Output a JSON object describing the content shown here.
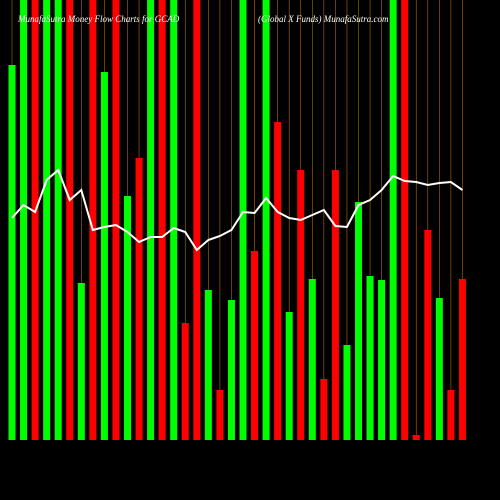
{
  "chart_data": {
    "type": "bar",
    "title": "MunafaSutra Money Flow Charts for GCAD",
    "subtitle": "(Global X Funds) MunafaSutra.com",
    "ylim": [
      0,
      440
    ],
    "bar_colors": [
      "#00ff00",
      "#00ff00",
      "#ff0000",
      "#00ff00",
      "#00ff00",
      "#ff0000",
      "#00ff00",
      "#ff0000",
      "#00ff00",
      "#ff0000",
      "#00ff00",
      "#ff0000",
      "#00ff00",
      "#ff0000",
      "#00ff00",
      "#ff0000",
      "#ff0000",
      "#00ff00",
      "#ff0000",
      "#00ff00",
      "#00ff00",
      "#ff0000",
      "#00ff00",
      "#ff0000",
      "#00ff00",
      "#ff0000",
      "#00ff00",
      "#ff0000",
      "#ff0000",
      "#00ff00",
      "#00ff00",
      "#00ff00",
      "#00ff00",
      "#00ff00",
      "#ff0000",
      "#ff0000",
      "#ff0000",
      "#00ff00",
      "#ff0000",
      "#ff0000"
    ],
    "values": [
      375,
      440,
      440,
      440,
      440,
      440,
      157,
      440,
      368,
      440,
      244,
      282,
      440,
      440,
      440,
      117,
      440,
      150,
      50,
      140,
      440,
      189,
      440,
      318,
      128,
      270,
      161,
      61,
      270,
      95,
      238,
      164,
      160,
      440,
      440,
      5,
      210,
      142,
      50,
      161
    ],
    "line_color": "#ffffff",
    "line_values": [
      222,
      235,
      228,
      260,
      270,
      240,
      250,
      210,
      213,
      215,
      208,
      198,
      203,
      203,
      212,
      208,
      190,
      200,
      204,
      210,
      228,
      227,
      242,
      228,
      222,
      220,
      225,
      230,
      214,
      213,
      235,
      240,
      250,
      264,
      259,
      258,
      255,
      257,
      258,
      250
    ],
    "guide_color": "#b36b00"
  }
}
